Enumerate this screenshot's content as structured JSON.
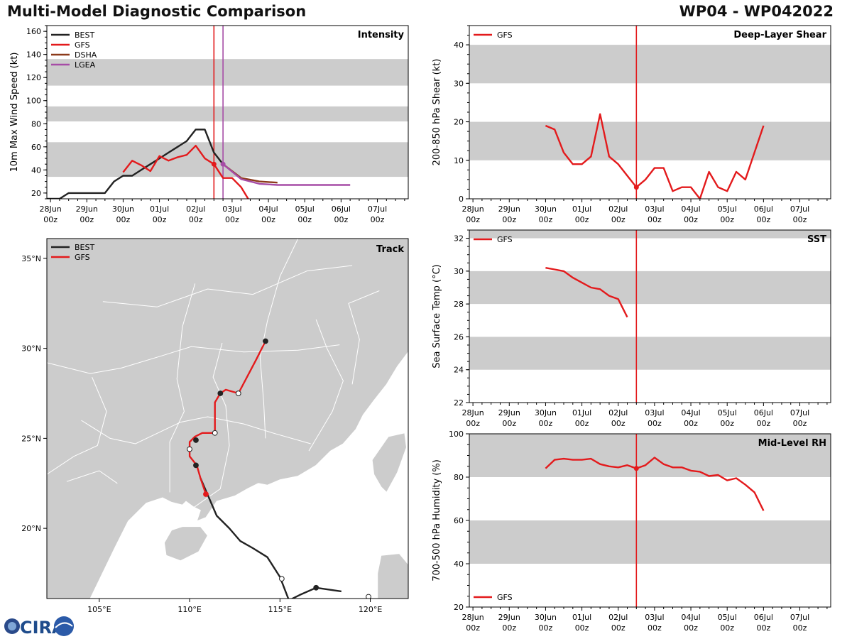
{
  "header": {
    "title": "Multi-Model Diagnostic Comparison",
    "storm_id": "WP04 - WP042022"
  },
  "logo": {
    "text": "CIRA"
  },
  "colors": {
    "best": "#222222",
    "gfs": "#e31a1c",
    "dsha": "#8c3a1a",
    "lgea": "#a64ca6",
    "band": "#cccccc",
    "land": "#cccccc",
    "border": "#ffffff"
  },
  "time_axis": {
    "range": [
      -0.1,
      9.85
    ],
    "ticks": [
      {
        "t": 0,
        "day": "28Jun",
        "hour": "00z"
      },
      {
        "t": 1,
        "day": "29Jun",
        "hour": "00z"
      },
      {
        "t": 2,
        "day": "30Jun",
        "hour": "00z"
      },
      {
        "t": 3,
        "day": "01Jul",
        "hour": "00z"
      },
      {
        "t": 4,
        "day": "02Jul",
        "hour": "00z"
      },
      {
        "t": 5,
        "day": "03Jul",
        "hour": "00z"
      },
      {
        "t": 6,
        "day": "04Jul",
        "hour": "00z"
      },
      {
        "t": 7,
        "day": "05Jul",
        "hour": "00z"
      },
      {
        "t": 8,
        "day": "06Jul",
        "hour": "00z"
      },
      {
        "t": 9,
        "day": "07Jul",
        "hour": "00z"
      }
    ],
    "time_units": "days since 28Jun 00z"
  },
  "chart_data": [
    {
      "id": "intensity",
      "type": "line",
      "title": "Intensity",
      "ylabel": "10m Max Wind Speed (kt)",
      "ylim": [
        15,
        165
      ],
      "yticks": [
        20,
        40,
        60,
        80,
        100,
        120,
        140,
        160
      ],
      "bands": [
        [
          34,
          64
        ],
        [
          82,
          95
        ],
        [
          113,
          136
        ]
      ],
      "vlines": [
        {
          "t": 4.5,
          "color": "gfs"
        },
        {
          "t": 4.75,
          "color": "lgea"
        }
      ],
      "legend": [
        "BEST",
        "GFS",
        "DSHA",
        "LGEA"
      ],
      "series": [
        {
          "name": "BEST",
          "color": "best",
          "x": [
            -0.1,
            0.25,
            0.5,
            0.75,
            1.0,
            1.25,
            1.5,
            1.75,
            2.0,
            2.25,
            2.5,
            2.75,
            3.0,
            3.25,
            3.5,
            3.75,
            4.0,
            4.25,
            4.5,
            4.75
          ],
          "y": [
            15,
            15,
            20,
            20,
            20,
            20,
            20,
            30,
            35,
            35,
            40,
            45,
            50,
            55,
            60,
            65,
            75,
            75,
            55,
            45
          ]
        },
        {
          "name": "GFS",
          "color": "gfs",
          "x": [
            2.0,
            2.25,
            2.5,
            2.75,
            3.0,
            3.25,
            3.5,
            3.75,
            4.0,
            4.25,
            4.5,
            4.75,
            5.0,
            5.25,
            5.5
          ],
          "y": [
            38,
            48,
            44,
            39,
            52,
            48,
            51,
            53,
            61,
            50,
            45,
            33,
            33,
            25,
            12
          ],
          "markers": [
            {
              "x": 4.5,
              "y": 45
            }
          ]
        },
        {
          "name": "DSHA",
          "color": "dsha",
          "x": [
            4.75,
            5.25,
            5.75,
            6.25
          ],
          "y": [
            45,
            33,
            30,
            29
          ]
        },
        {
          "name": "LGEA",
          "color": "lgea",
          "x": [
            4.75,
            5.25,
            5.75,
            6.25,
            6.75,
            7.25,
            7.75,
            8.25
          ],
          "y": [
            45,
            32,
            28,
            27,
            27,
            27,
            27,
            27
          ],
          "markers": [
            {
              "x": 4.75,
              "y": 45
            }
          ]
        }
      ]
    },
    {
      "id": "shear",
      "type": "line",
      "title": "Deep-Layer Shear",
      "ylabel": "200-850 hPa Shear (kt)",
      "ylim": [
        0,
        45
      ],
      "yticks": [
        0,
        10,
        20,
        30,
        40
      ],
      "bands": [
        [
          10,
          20
        ],
        [
          30,
          40
        ]
      ],
      "vlines": [
        {
          "t": 4.5,
          "color": "gfs"
        }
      ],
      "legend": [
        "GFS"
      ],
      "series": [
        {
          "name": "GFS",
          "color": "gfs",
          "x": [
            2.0,
            2.25,
            2.5,
            2.75,
            3.0,
            3.25,
            3.5,
            3.75,
            4.0,
            4.25,
            4.5,
            4.75,
            5.0,
            5.25,
            5.5,
            5.75,
            6.0,
            6.25,
            6.5,
            6.75,
            7.0,
            7.25,
            7.5,
            7.75,
            8.0
          ],
          "y": [
            19,
            18,
            12,
            9,
            9,
            11,
            22,
            11,
            9,
            6,
            3,
            5,
            8,
            8,
            2,
            3,
            3,
            0,
            7,
            3,
            2,
            7,
            5,
            12,
            19
          ],
          "markers": [
            {
              "x": 4.5,
              "y": 3
            }
          ]
        }
      ]
    },
    {
      "id": "sst",
      "type": "line",
      "title": "SST",
      "ylabel": "Sea Surface Temp (°C)",
      "ylim": [
        22,
        32.5
      ],
      "yticks": [
        22,
        24,
        26,
        28,
        30,
        32
      ],
      "bands": [
        [
          24,
          26
        ],
        [
          28,
          30
        ],
        [
          32,
          34
        ]
      ],
      "vlines": [
        {
          "t": 4.5,
          "color": "gfs"
        }
      ],
      "legend": [
        "GFS"
      ],
      "series": [
        {
          "name": "GFS",
          "color": "gfs",
          "x": [
            2.0,
            2.25,
            2.5,
            2.75,
            3.0,
            3.25,
            3.5,
            3.75,
            4.0,
            4.25
          ],
          "y": [
            30.2,
            30.1,
            30.0,
            29.6,
            29.3,
            29.0,
            28.9,
            28.5,
            28.3,
            27.2
          ]
        }
      ]
    },
    {
      "id": "rh",
      "type": "line",
      "title": "Mid-Level RH",
      "ylabel": "700-500 hPa Humidity (%)",
      "ylim": [
        20,
        100
      ],
      "yticks": [
        20,
        40,
        60,
        80,
        100
      ],
      "bands": [
        [
          40,
          60
        ],
        [
          80,
          100
        ]
      ],
      "vlines": [
        {
          "t": 4.5,
          "color": "gfs"
        }
      ],
      "legend": [
        "GFS"
      ],
      "series": [
        {
          "name": "GFS",
          "color": "gfs",
          "x": [
            2.0,
            2.25,
            2.5,
            2.75,
            3.0,
            3.25,
            3.5,
            3.75,
            4.0,
            4.25,
            4.5,
            4.75,
            5.0,
            5.25,
            5.5,
            5.75,
            6.0,
            6.25,
            6.5,
            6.75,
            7.0,
            7.25,
            7.5,
            7.75,
            8.0
          ],
          "y": [
            84,
            88,
            88.5,
            88,
            88,
            88.5,
            86,
            85,
            84.5,
            85.5,
            84,
            85.5,
            89,
            86,
            84.5,
            84.5,
            83,
            82.5,
            80.5,
            81,
            78.5,
            79.5,
            76.5,
            73,
            64.5
          ],
          "markers": [
            {
              "x": 4.5,
              "y": 84
            }
          ]
        }
      ]
    },
    {
      "id": "track",
      "type": "scatter",
      "title": "Track",
      "xlim": [
        102.1,
        122.1
      ],
      "ylim": [
        16.1,
        36.1
      ],
      "xticks": [
        {
          "v": 105,
          "label": "105°E"
        },
        {
          "v": 110,
          "label": "110°E"
        },
        {
          "v": 115,
          "label": "115°E"
        },
        {
          "v": 120,
          "label": "120°E"
        }
      ],
      "yticks": [
        {
          "v": 20,
          "label": "20°N"
        },
        {
          "v": 25,
          "label": "25°N"
        },
        {
          "v": 30,
          "label": "30°N"
        },
        {
          "v": 35,
          "label": "35°N"
        }
      ],
      "legend": [
        "BEST",
        "GFS"
      ],
      "series": [
        {
          "name": "BEST",
          "color": "best",
          "lon": [
            118.4,
            117.0,
            116.1,
            115.5,
            115.0,
            114.3,
            113.5,
            112.8,
            112.2,
            111.5,
            110.6
          ],
          "lat": [
            16.5,
            16.7,
            16.3,
            16.0,
            17.3,
            18.4,
            18.9,
            19.3,
            20.0,
            20.7,
            22.8
          ],
          "markers": [
            {
              "lon": 117.0,
              "lat": 16.7,
              "fill": "solid"
            },
            {
              "lon": 115.1,
              "lat": 17.2,
              "fill": "open"
            },
            {
              "lon": 119.9,
              "lat": 16.2,
              "fill": "open"
            }
          ]
        },
        {
          "name": "GFS",
          "color": "gfs",
          "lon": [
            110.9,
            110.6,
            110.4,
            110.0,
            110.0,
            110.3,
            110.7,
            111.4,
            111.4,
            111.7,
            112.0,
            112.7,
            113.7,
            114.2
          ],
          "lat": [
            21.9,
            22.8,
            23.5,
            24.0,
            24.8,
            25.1,
            25.3,
            25.3,
            27.0,
            27.5,
            27.7,
            27.5,
            29.4,
            30.4
          ],
          "markers": [
            {
              "lon": 110.9,
              "lat": 21.9,
              "fill": "red"
            },
            {
              "lon": 110.35,
              "lat": 23.5,
              "fill": "solid"
            },
            {
              "lon": 110.0,
              "lat": 24.4,
              "fill": "open"
            },
            {
              "lon": 110.35,
              "lat": 24.9,
              "fill": "solid"
            },
            {
              "lon": 111.4,
              "lat": 25.3,
              "fill": "open"
            },
            {
              "lon": 111.7,
              "lat": 27.5,
              "fill": "solid"
            },
            {
              "lon": 112.7,
              "lat": 27.5,
              "fill": "open"
            },
            {
              "lon": 114.2,
              "lat": 30.4,
              "fill": "solid"
            }
          ]
        }
      ],
      "coast": [
        [
          108.5,
          21.7
        ],
        [
          109.0,
          21.45
        ],
        [
          109.6,
          21.3
        ],
        [
          109.8,
          21.5
        ],
        [
          110.2,
          21.2
        ],
        [
          110.6,
          21.0
        ],
        [
          110.4,
          20.4
        ],
        [
          110.9,
          20.6
        ],
        [
          111.5,
          21.5
        ],
        [
          112.5,
          21.8
        ],
        [
          113.2,
          22.2
        ],
        [
          113.8,
          22.5
        ],
        [
          114.3,
          22.4
        ],
        [
          115.0,
          22.7
        ],
        [
          116.0,
          22.9
        ],
        [
          117.0,
          23.5
        ],
        [
          117.8,
          24.3
        ],
        [
          118.5,
          24.7
        ],
        [
          119.2,
          25.5
        ],
        [
          119.6,
          26.3
        ],
        [
          120.2,
          27.1
        ],
        [
          120.9,
          28.0
        ],
        [
          121.5,
          29.0
        ],
        [
          122.1,
          29.8
        ]
      ],
      "hainan": [
        [
          108.6,
          19.2
        ],
        [
          109.0,
          19.9
        ],
        [
          109.6,
          20.1
        ],
        [
          110.6,
          20.1
        ],
        [
          111.0,
          19.6
        ],
        [
          110.5,
          18.7
        ],
        [
          109.5,
          18.2
        ],
        [
          108.7,
          18.5
        ]
      ],
      "taiwan": [
        [
          121.0,
          25.1
        ],
        [
          121.9,
          25.3
        ],
        [
          122.0,
          24.5
        ],
        [
          121.5,
          23.1
        ],
        [
          120.9,
          22.0
        ],
        [
          120.6,
          22.3
        ],
        [
          120.2,
          23.0
        ],
        [
          120.1,
          23.8
        ]
      ],
      "luzon": [
        [
          120.6,
          18.5
        ],
        [
          121.6,
          18.6
        ],
        [
          122.1,
          18.0
        ],
        [
          122.1,
          16.1
        ],
        [
          120.4,
          16.1
        ],
        [
          120.4,
          17.5
        ]
      ]
    }
  ]
}
